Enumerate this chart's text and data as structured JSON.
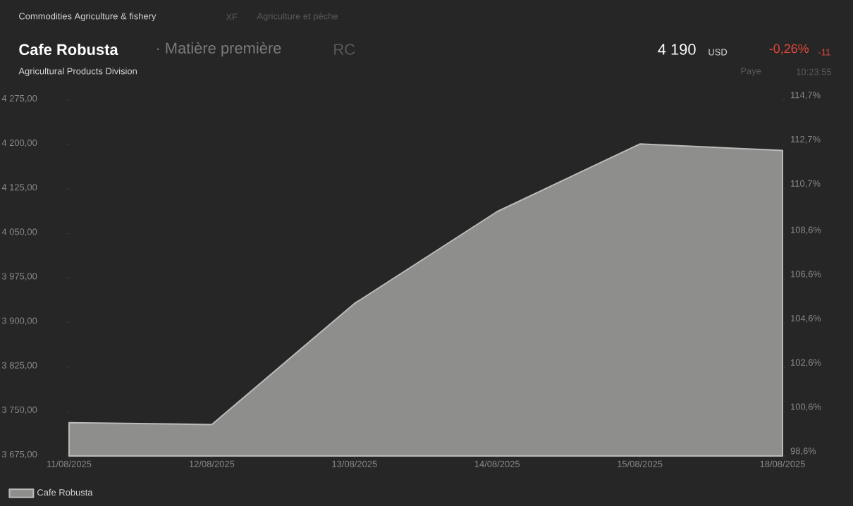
{
  "chart_data": {
    "type": "area",
    "title": "Cafe Robusta",
    "subtitle": "· Matière première",
    "annotations": [
      "Commodities Agriculture & fishery",
      "XF",
      "Agriculture et pêche",
      "RC",
      "Agricultural Products Division",
      "4 190",
      "USD",
      "-0,26%",
      "-11",
      "Paye",
      "10:23:55"
    ],
    "categories": [
      "11/08/2025",
      "12/08/2025",
      "13/08/2025",
      "14/08/2025",
      "15/08/2025",
      "18/08/2025"
    ],
    "series": [
      {
        "name": "Cafe Robusta",
        "color": "#8e8e8c",
        "values": [
          3731,
          3728,
          3932,
          4087,
          4201,
          4190
        ]
      }
    ],
    "ylim": [
      3675,
      4275
    ],
    "yticks": [
      {
        "value": 3675,
        "label": "3 675,00"
      },
      {
        "value": 3750,
        "label": "3 750,00"
      },
      {
        "value": 3825,
        "label": "3 825,00"
      },
      {
        "value": 3900,
        "label": "3 900,00"
      },
      {
        "value": 3975,
        "label": "3 975,00"
      },
      {
        "value": 4050,
        "label": "4 050,00"
      },
      {
        "value": 4125,
        "label": "4 125,00"
      },
      {
        "value": 4200,
        "label": "4 200,00"
      },
      {
        "value": 4275,
        "label": "4 275,00"
      }
    ],
    "y2lim": [
      98.6,
      114.7
    ],
    "y2ticks": [
      {
        "value": 98.6,
        "label": "98,6%"
      },
      {
        "value": 100.6,
        "label": "100,6%"
      },
      {
        "value": 102.6,
        "label": "102,6%"
      },
      {
        "value": 104.6,
        "label": "104,6%"
      },
      {
        "value": 106.6,
        "label": "106,6%"
      },
      {
        "value": 108.6,
        "label": "108,6%"
      },
      {
        "value": 110.7,
        "label": "110,7%"
      },
      {
        "value": 112.7,
        "label": "112,7%"
      },
      {
        "value": 114.7,
        "label": "114,7%"
      }
    ],
    "legend": "bottom left",
    "marker": "none",
    "line_style": "solid"
  }
}
